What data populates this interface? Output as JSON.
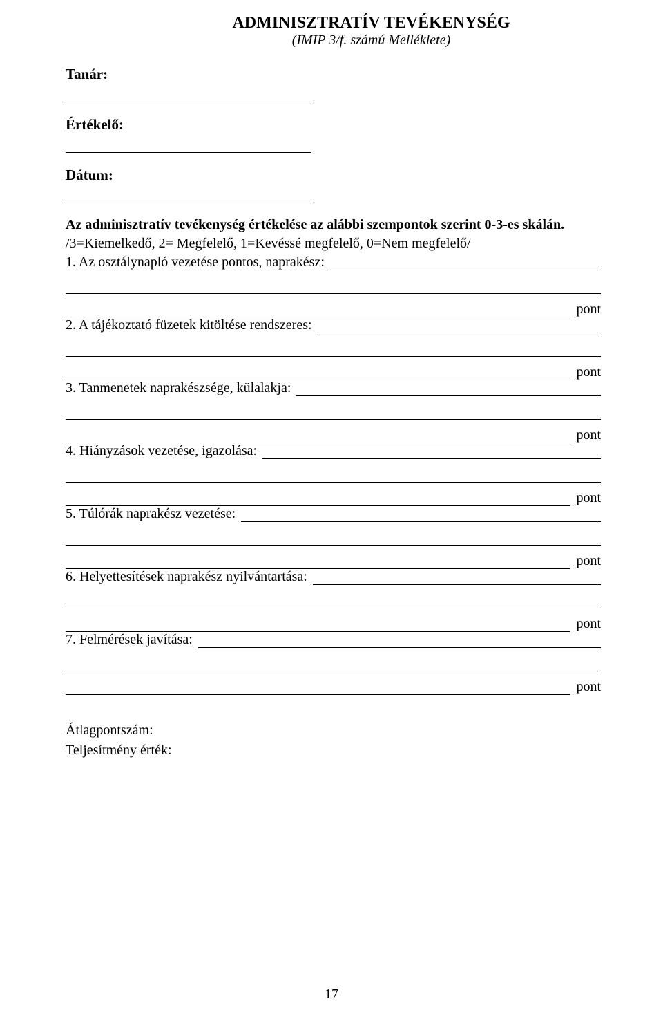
{
  "title": "ADMINISZTRATÍV TEVÉKENYSÉG",
  "subtitle": "(IMIP 3/f. számú Melléklete)",
  "fields": {
    "tanar": "Tanár:",
    "ertekelo": "Értékelő:",
    "datum": "Dátum:"
  },
  "intro": "Az adminisztratív tevékenység értékelése az alábbi szempontok szerint 0-3-es skálán.",
  "scale": "/3=Kiemelkedő, 2= Megfelelő, 1=Kevéssé megfelelő, 0=Nem megfelelő/",
  "items": [
    "1. Az osztálynapló vezetése pontos, naprakész:",
    "2. A tájékoztató füzetek kitöltése rendszeres:",
    "3. Tanmenetek naprakészsége, külalakja:",
    "4. Hiányzások vezetése, igazolása:",
    "5. Túlórák naprakész vezetése:",
    "6. Helyettesítések naprakész nyilvántartása:",
    "7. Felmérések javítása:"
  ],
  "pont_label": "pont",
  "summary": {
    "atlag": "Átlagpontszám:",
    "teljesitmeny": "Teljesítmény érték:"
  },
  "page_number": "17"
}
